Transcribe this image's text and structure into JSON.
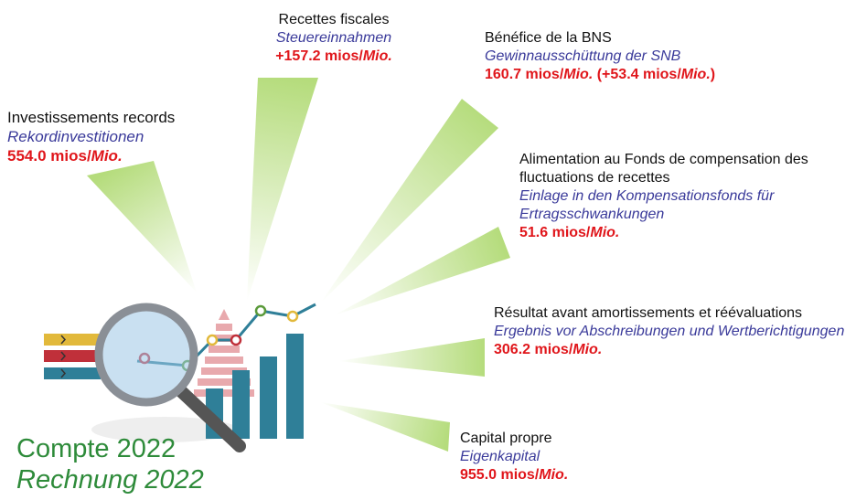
{
  "title": {
    "fr": "Compte 2022",
    "de": "Rechnung 2022"
  },
  "items": [
    {
      "fr": "Investissements records",
      "de": "Rekordinvestitionen",
      "amount": [
        {
          "text": "554.0 mios/"
        },
        {
          "text": "Mio.",
          "italic": true
        }
      ]
    },
    {
      "fr": "Recettes fiscales",
      "de": "Steuereinnahmen",
      "amount": [
        {
          "text": "+157.2 mios/"
        },
        {
          "text": "Mio.",
          "italic": true
        }
      ]
    },
    {
      "fr": "Bénéfice de la BNS",
      "de": "Gewinnausschüttung der SNB",
      "amount": [
        {
          "text": "160.7 mios/"
        },
        {
          "text": "Mio.",
          "italic": true
        },
        {
          "text": " (+53.4 mios/"
        },
        {
          "text": "Mio.",
          "italic": true
        },
        {
          "text": ")"
        }
      ]
    },
    {
      "fr": "Alimentation au Fonds de compensation des fluctuations de recettes",
      "de": "Einlage in den Kompensationsfonds für Ertragsschwankungen",
      "amount": [
        {
          "text": "51.6 mios/"
        },
        {
          "text": "Mio.",
          "italic": true
        }
      ]
    },
    {
      "fr": "Résultat avant amortissements et réévaluations",
      "de": "Ergebnis vor Abschreibungen und Wertberichtigungen",
      "amount": [
        {
          "text": "306.2 mios/"
        },
        {
          "text": "Mio.",
          "italic": true
        }
      ]
    },
    {
      "fr": "Capital propre",
      "de": "Eigenkapital",
      "amount": [
        {
          "text": "955.0 mios/"
        },
        {
          "text": "Mio.",
          "italic": true
        }
      ]
    }
  ]
}
